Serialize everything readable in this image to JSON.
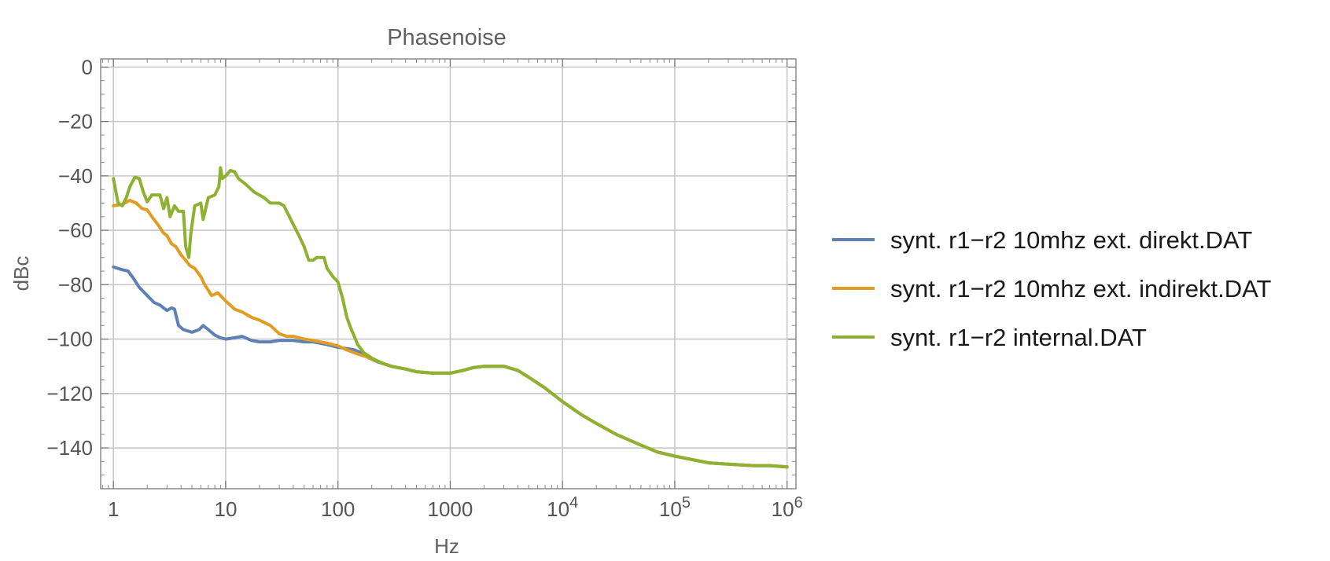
{
  "chart_data": {
    "type": "line",
    "title": "Phasenoise",
    "xlabel": "Hz",
    "ylabel": "dBc",
    "xscale": "log",
    "xlim": [
      0.77,
      1200000
    ],
    "ylim": [
      -155,
      3
    ],
    "grid": true,
    "legend_position": "right",
    "x_ticks": [
      {
        "value": 1,
        "label": "1"
      },
      {
        "value": 10,
        "label": "10"
      },
      {
        "value": 100,
        "label": "100"
      },
      {
        "value": 1000,
        "label": "1000"
      },
      {
        "value": 10000,
        "label": "10",
        "exp": "4"
      },
      {
        "value": 100000,
        "label": "10",
        "exp": "5"
      },
      {
        "value": 1000000,
        "label": "10",
        "exp": "6"
      }
    ],
    "y_ticks": [
      {
        "value": 0,
        "label": "0"
      },
      {
        "value": -20,
        "label": "−20"
      },
      {
        "value": -40,
        "label": "−40"
      },
      {
        "value": -60,
        "label": "−60"
      },
      {
        "value": -80,
        "label": "−80"
      },
      {
        "value": -100,
        "label": "−100"
      },
      {
        "value": -120,
        "label": "−120"
      },
      {
        "value": -140,
        "label": "−140"
      }
    ],
    "series": [
      {
        "name": "synt. r1−r2 10mhz ext. direkt.DAT",
        "color": "#5e81b5",
        "points": [
          [
            1,
            -73.5
          ],
          [
            1.2,
            -74.5
          ],
          [
            1.35,
            -75
          ],
          [
            1.5,
            -77.5
          ],
          [
            1.7,
            -81
          ],
          [
            2,
            -84
          ],
          [
            2.3,
            -86.5
          ],
          [
            2.6,
            -87.5
          ],
          [
            3,
            -89.5
          ],
          [
            3.3,
            -88.5
          ],
          [
            3.5,
            -89
          ],
          [
            3.8,
            -95
          ],
          [
            4.2,
            -96.5
          ],
          [
            5,
            -97.5
          ],
          [
            5.8,
            -96.5
          ],
          [
            6.3,
            -95
          ],
          [
            7,
            -96.5
          ],
          [
            8,
            -98.5
          ],
          [
            9,
            -99.5
          ],
          [
            10,
            -100
          ],
          [
            12,
            -99.5
          ],
          [
            14,
            -99
          ],
          [
            17,
            -100.5
          ],
          [
            20,
            -101
          ],
          [
            25,
            -101
          ],
          [
            30,
            -100.5
          ],
          [
            40,
            -100.5
          ],
          [
            50,
            -101
          ],
          [
            60,
            -101
          ],
          [
            80,
            -102
          ],
          [
            100,
            -103
          ],
          [
            120,
            -103.5
          ],
          [
            140,
            -104
          ],
          [
            160,
            -105
          ],
          [
            190,
            -107
          ],
          [
            230,
            -108.5
          ],
          [
            300,
            -110
          ],
          [
            400,
            -111
          ],
          [
            500,
            -112
          ],
          [
            700,
            -112.5
          ],
          [
            1000,
            -112.5
          ],
          [
            1300,
            -111.5
          ],
          [
            1600,
            -110.5
          ],
          [
            2000,
            -110
          ],
          [
            2500,
            -110
          ],
          [
            3000,
            -110
          ],
          [
            4000,
            -111.5
          ],
          [
            5000,
            -114
          ],
          [
            7000,
            -118
          ],
          [
            10000,
            -123
          ],
          [
            15000,
            -128
          ],
          [
            20000,
            -131
          ],
          [
            30000,
            -135
          ],
          [
            50000,
            -139
          ],
          [
            70000,
            -141.5
          ],
          [
            100000,
            -143
          ],
          [
            150000,
            -144.5
          ],
          [
            200000,
            -145.5
          ],
          [
            300000,
            -146
          ],
          [
            500000,
            -146.5
          ],
          [
            700000,
            -146.5
          ],
          [
            1000000,
            -147
          ]
        ]
      },
      {
        "name": "synt. r1−r2 10mhz ext. indirekt.DAT",
        "color": "#e19c24",
        "points": [
          [
            1,
            -51
          ],
          [
            1.2,
            -50.5
          ],
          [
            1.4,
            -49
          ],
          [
            1.6,
            -50
          ],
          [
            1.8,
            -52
          ],
          [
            2,
            -52.5
          ],
          [
            2.2,
            -55
          ],
          [
            2.5,
            -58
          ],
          [
            2.8,
            -61
          ],
          [
            3,
            -62
          ],
          [
            3.3,
            -65
          ],
          [
            3.6,
            -66
          ],
          [
            4,
            -69
          ],
          [
            4.4,
            -71
          ],
          [
            4.8,
            -73
          ],
          [
            5.3,
            -74
          ],
          [
            6,
            -77
          ],
          [
            6.5,
            -80
          ],
          [
            7,
            -82
          ],
          [
            7.5,
            -84
          ],
          [
            8.5,
            -83
          ],
          [
            10,
            -86
          ],
          [
            12,
            -89
          ],
          [
            14,
            -90
          ],
          [
            17,
            -92
          ],
          [
            20,
            -93
          ],
          [
            25,
            -95
          ],
          [
            30,
            -98
          ],
          [
            35,
            -99
          ],
          [
            40,
            -99
          ],
          [
            50,
            -100
          ],
          [
            60,
            -100.5
          ],
          [
            80,
            -101.5
          ],
          [
            100,
            -102.5
          ],
          [
            120,
            -104
          ],
          [
            150,
            -105.5
          ],
          [
            180,
            -106.5
          ],
          [
            220,
            -108
          ],
          [
            300,
            -110
          ],
          [
            400,
            -111
          ],
          [
            500,
            -112
          ],
          [
            700,
            -112.5
          ],
          [
            1000,
            -112.5
          ],
          [
            1300,
            -111.5
          ],
          [
            1600,
            -110.5
          ],
          [
            2000,
            -110
          ],
          [
            2500,
            -110
          ],
          [
            3000,
            -110
          ],
          [
            4000,
            -111.5
          ],
          [
            5000,
            -114
          ],
          [
            7000,
            -118
          ],
          [
            10000,
            -123
          ],
          [
            15000,
            -128
          ],
          [
            20000,
            -131
          ],
          [
            30000,
            -135
          ],
          [
            50000,
            -139
          ],
          [
            70000,
            -141.5
          ],
          [
            100000,
            -143
          ],
          [
            150000,
            -144.5
          ],
          [
            200000,
            -145.5
          ],
          [
            300000,
            -146
          ],
          [
            500000,
            -146.5
          ],
          [
            700000,
            -146.5
          ],
          [
            1000000,
            -147
          ]
        ]
      },
      {
        "name": "synt. r1−r2 internal.DAT",
        "color": "#8fb131",
        "points": [
          [
            1,
            -41
          ],
          [
            1.1,
            -50
          ],
          [
            1.2,
            -51
          ],
          [
            1.3,
            -48
          ],
          [
            1.4,
            -44
          ],
          [
            1.55,
            -40.5
          ],
          [
            1.7,
            -41
          ],
          [
            1.85,
            -46
          ],
          [
            2,
            -49.5
          ],
          [
            2.2,
            -47
          ],
          [
            2.6,
            -47
          ],
          [
            2.8,
            -52
          ],
          [
            3,
            -48
          ],
          [
            3.2,
            -55
          ],
          [
            3.5,
            -51
          ],
          [
            3.8,
            -53
          ],
          [
            4.2,
            -53
          ],
          [
            4.4,
            -66
          ],
          [
            4.7,
            -70
          ],
          [
            4.9,
            -61
          ],
          [
            5.3,
            -51
          ],
          [
            6,
            -50
          ],
          [
            6.3,
            -56
          ],
          [
            7,
            -48
          ],
          [
            8,
            -47
          ],
          [
            8.7,
            -44
          ],
          [
            9,
            -37
          ],
          [
            9.3,
            -41
          ],
          [
            10,
            -40
          ],
          [
            11,
            -38
          ],
          [
            12,
            -38.5
          ],
          [
            13,
            -41
          ],
          [
            15,
            -43
          ],
          [
            18,
            -46
          ],
          [
            22,
            -48
          ],
          [
            25,
            -50
          ],
          [
            30,
            -50
          ],
          [
            33,
            -51
          ],
          [
            38,
            -56
          ],
          [
            45,
            -62
          ],
          [
            50,
            -66
          ],
          [
            55,
            -71
          ],
          [
            60,
            -71
          ],
          [
            65,
            -70
          ],
          [
            75,
            -70
          ],
          [
            80,
            -74
          ],
          [
            90,
            -77
          ],
          [
            100,
            -79
          ],
          [
            110,
            -85
          ],
          [
            120,
            -92
          ],
          [
            130,
            -96
          ],
          [
            150,
            -102
          ],
          [
            170,
            -105
          ],
          [
            200,
            -107
          ],
          [
            250,
            -109
          ],
          [
            300,
            -110
          ],
          [
            400,
            -111
          ],
          [
            500,
            -112
          ],
          [
            700,
            -112.5
          ],
          [
            1000,
            -112.5
          ],
          [
            1300,
            -111.5
          ],
          [
            1600,
            -110.5
          ],
          [
            2000,
            -110
          ],
          [
            2500,
            -110
          ],
          [
            3000,
            -110
          ],
          [
            4000,
            -111.5
          ],
          [
            5000,
            -114
          ],
          [
            7000,
            -118
          ],
          [
            10000,
            -123
          ],
          [
            15000,
            -128
          ],
          [
            20000,
            -131
          ],
          [
            30000,
            -135
          ],
          [
            50000,
            -139
          ],
          [
            70000,
            -141.5
          ],
          [
            100000,
            -143
          ],
          [
            150000,
            -144.5
          ],
          [
            200000,
            -145.5
          ],
          [
            300000,
            -146
          ],
          [
            500000,
            -146.5
          ],
          [
            700000,
            -146.5
          ],
          [
            1000000,
            -147
          ]
        ]
      }
    ]
  }
}
